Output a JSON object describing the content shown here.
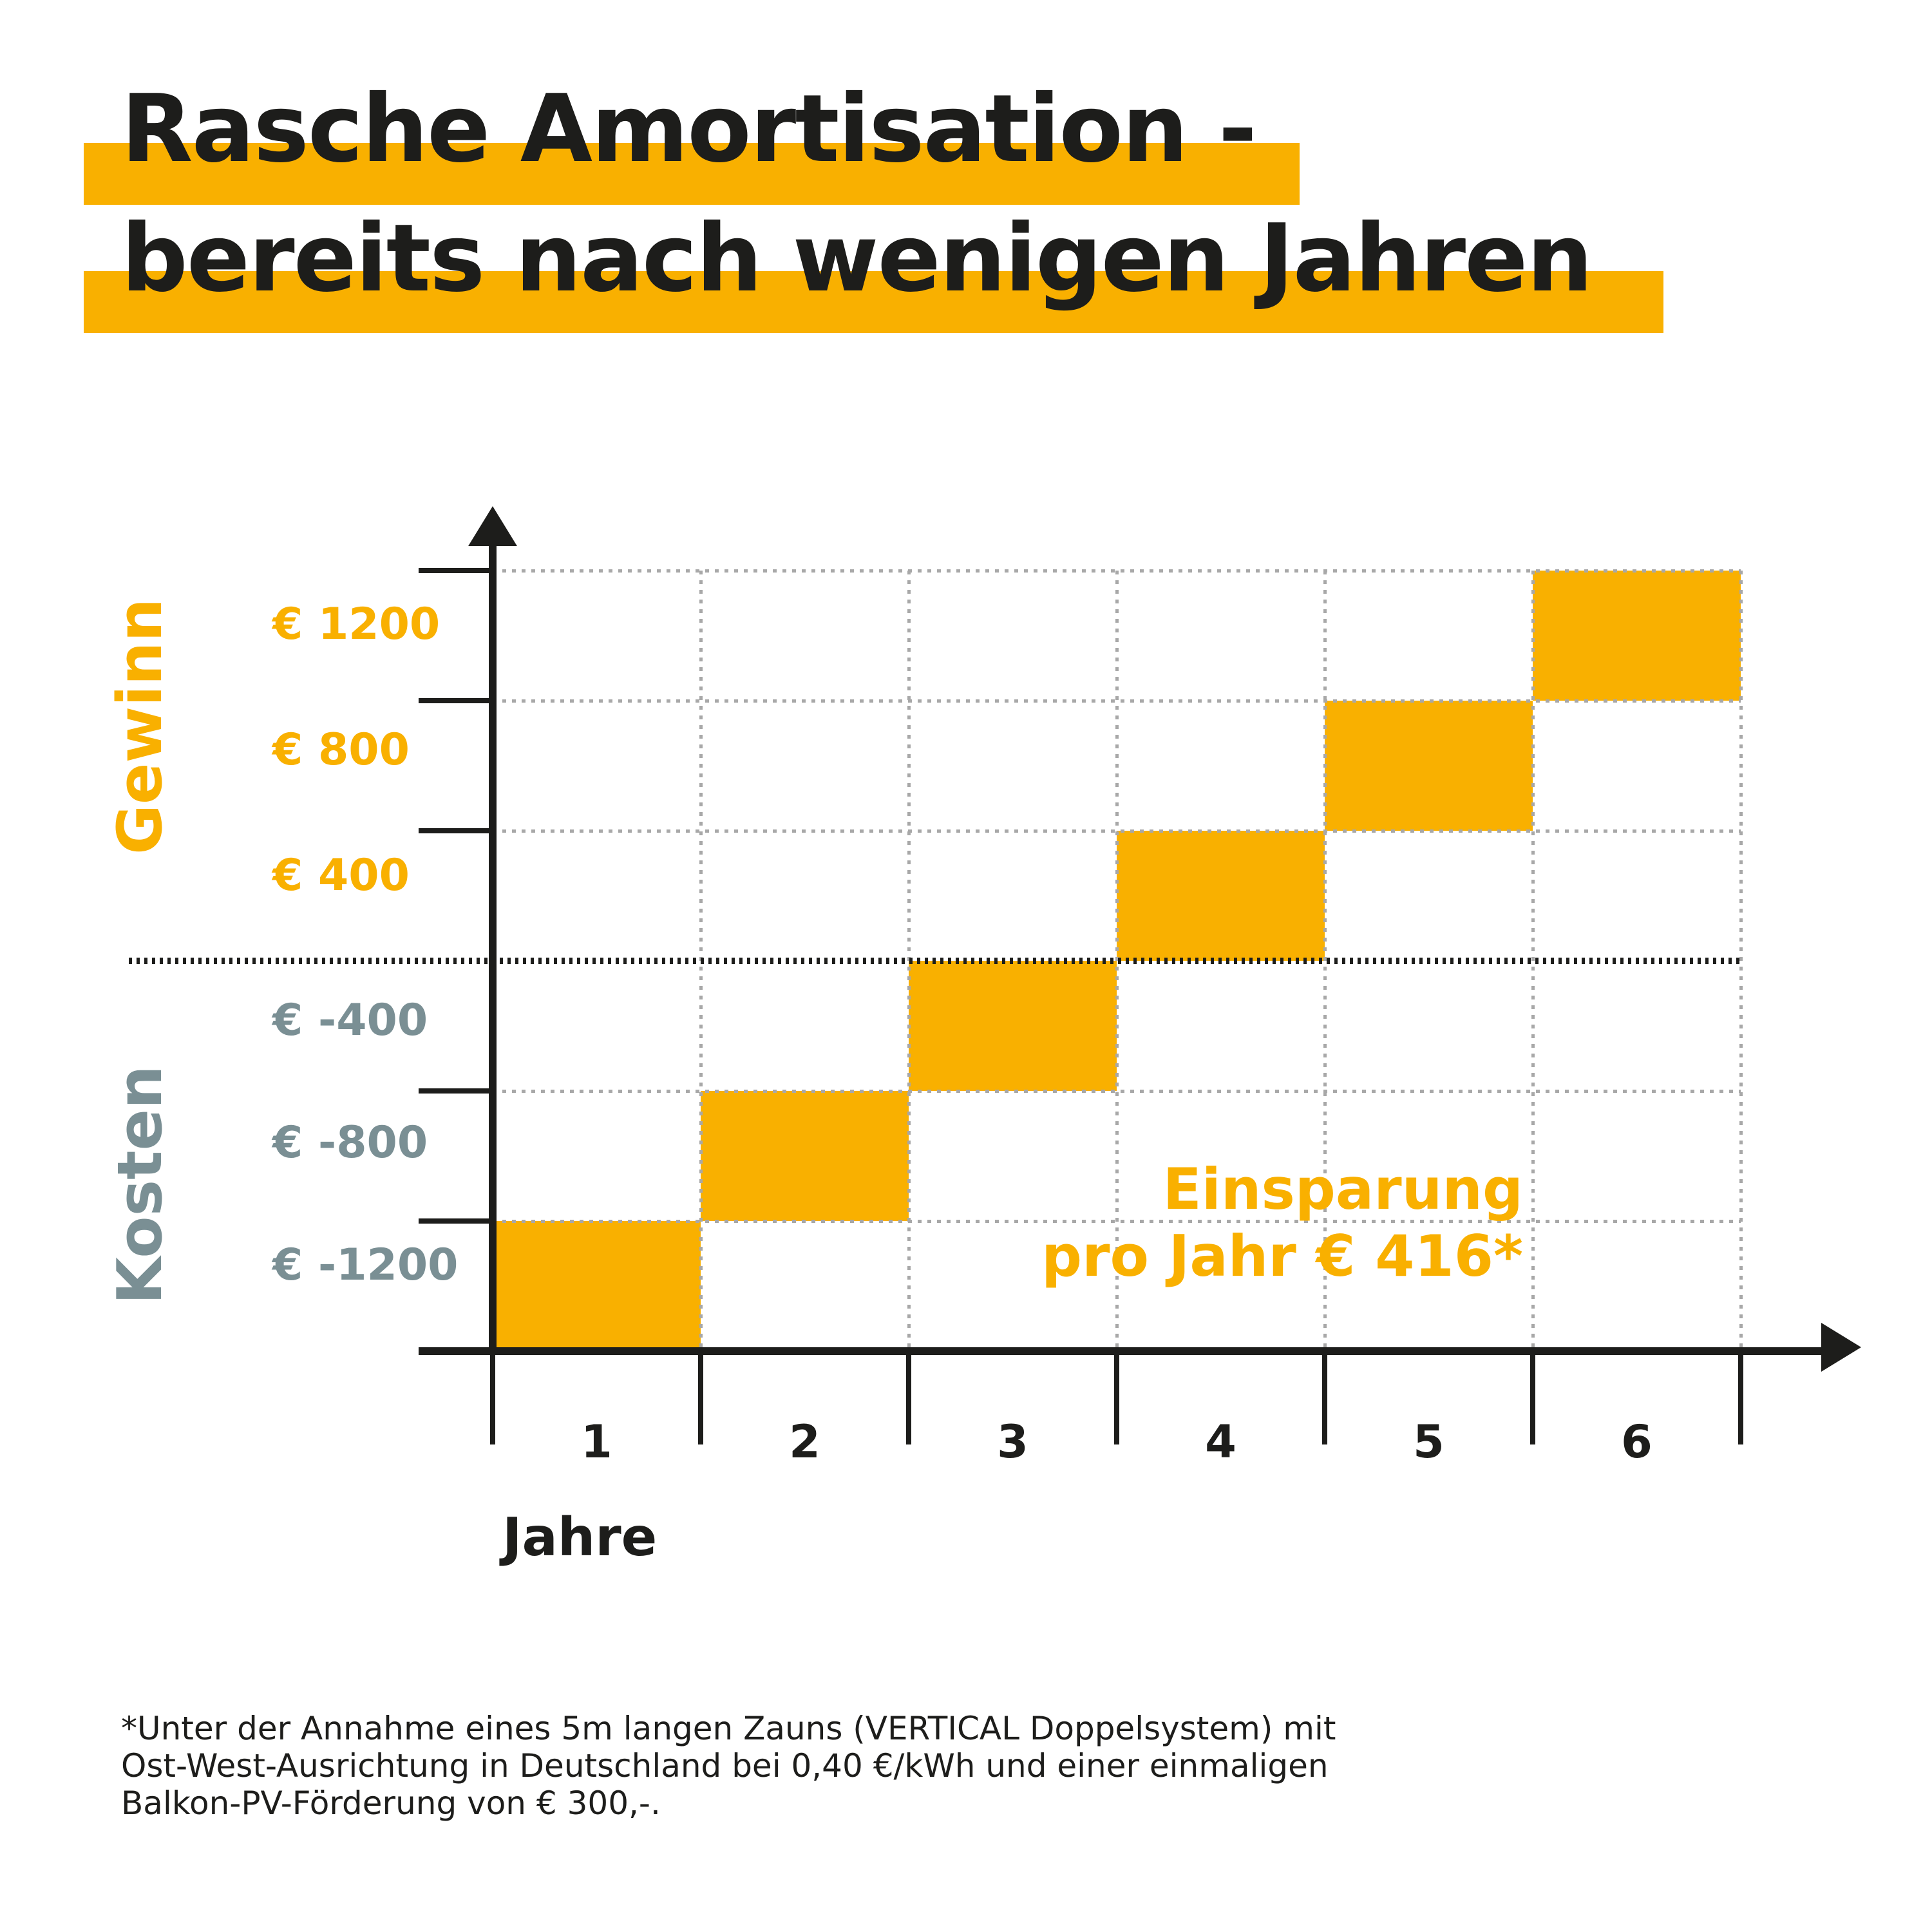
{
  "palette": {
    "amber": "#F9B000",
    "gray": "#7A8F94",
    "ink": "#1D1D1B",
    "grid": "#A8A8A8"
  },
  "title": {
    "line1": "Rasche Amortisation -",
    "line2": "bereits nach wenigen Jahren"
  },
  "chart_data": {
    "type": "bar",
    "title": "Rasche Amortisation - bereits nach wenigen Jahren",
    "xlabel": "Jahre",
    "ylabel_positive": "Gewinn",
    "ylabel_negative": "Kosten",
    "categories": [
      "1",
      "2",
      "3",
      "4",
      "5",
      "6"
    ],
    "values": [
      -1200,
      -800,
      -400,
      400,
      800,
      1200
    ],
    "band_height_eur": 400,
    "y_axis_max_eur": 1200,
    "ytick_labels": [
      "€ 1200",
      "€ 800",
      "€ 400",
      "€ -400",
      "€ -800",
      "€ -1200"
    ],
    "savings_per_year_eur": 416,
    "annotation": "Einsparung\npro Jahr € 416*",
    "bar_color": "#F9B000",
    "grid": "dotted",
    "legend": "none"
  },
  "footnote": "*Unter der Annahme eines 5m langen Zauns (VERTICAL Doppelsystem) mit\nOst-West-Ausrichtung in Deutschland bei 0,40 €/kWh und einer einmaligen\nBalkon-PV-Förderung von € 300,-."
}
